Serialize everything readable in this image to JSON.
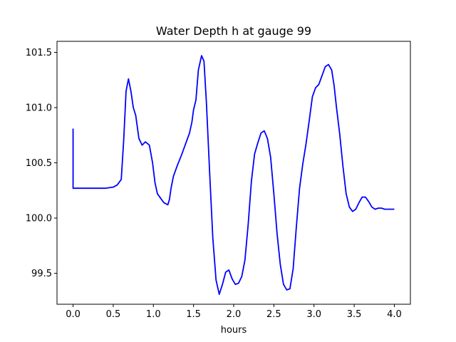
{
  "chart_data": {
    "type": "line",
    "title": "Water Depth h at gauge 99",
    "xlabel": "hours",
    "ylabel": "",
    "xlim": [
      -0.2,
      4.2
    ],
    "ylim": [
      99.22,
      101.6
    ],
    "xticks": [
      0.0,
      0.5,
      1.0,
      1.5,
      2.0,
      2.5,
      3.0,
      3.5,
      4.0
    ],
    "xtick_labels": [
      "0.0",
      "0.5",
      "1.0",
      "1.5",
      "2.0",
      "2.5",
      "3.0",
      "3.5",
      "4.0"
    ],
    "yticks": [
      99.5,
      100.0,
      100.5,
      101.0,
      101.5
    ],
    "ytick_labels": [
      "99.5",
      "100.0",
      "100.5",
      "101.0",
      "101.5"
    ],
    "grid": false,
    "series": [
      {
        "color": "#0000ff",
        "x": [
          0.0,
          0.0,
          0.0,
          0.1,
          0.2,
          0.3,
          0.4,
          0.5,
          0.55,
          0.6,
          0.63,
          0.66,
          0.69,
          0.72,
          0.75,
          0.78,
          0.82,
          0.86,
          0.9,
          0.95,
          0.99,
          1.02,
          1.05,
          1.09,
          1.13,
          1.18,
          1.2,
          1.22,
          1.25,
          1.3,
          1.35,
          1.4,
          1.45,
          1.48,
          1.5,
          1.53,
          1.56,
          1.6,
          1.63,
          1.66,
          1.7,
          1.74,
          1.78,
          1.82,
          1.86,
          1.9,
          1.94,
          1.98,
          2.02,
          2.06,
          2.1,
          2.14,
          2.18,
          2.22,
          2.26,
          2.3,
          2.34,
          2.38,
          2.42,
          2.46,
          2.5,
          2.54,
          2.58,
          2.62,
          2.66,
          2.7,
          2.74,
          2.78,
          2.82,
          2.86,
          2.9,
          2.94,
          2.98,
          3.02,
          3.06,
          3.1,
          3.14,
          3.18,
          3.22,
          3.25,
          3.28,
          3.32,
          3.36,
          3.4,
          3.44,
          3.48,
          3.52,
          3.56,
          3.6,
          3.64,
          3.68,
          3.72,
          3.76,
          3.8,
          3.84,
          3.88,
          3.92,
          3.96,
          4.0
        ],
        "y": [
          100.81,
          100.27,
          100.27,
          100.27,
          100.27,
          100.27,
          100.27,
          100.28,
          100.3,
          100.35,
          100.7,
          101.15,
          101.26,
          101.15,
          101.0,
          100.93,
          100.72,
          100.66,
          100.69,
          100.66,
          100.5,
          100.32,
          100.22,
          100.18,
          100.14,
          100.12,
          100.17,
          100.27,
          100.38,
          100.48,
          100.57,
          100.67,
          100.77,
          100.87,
          100.98,
          101.07,
          101.34,
          101.47,
          101.42,
          101.05,
          100.42,
          99.82,
          99.44,
          99.31,
          99.4,
          99.51,
          99.53,
          99.45,
          99.4,
          99.41,
          99.47,
          99.62,
          99.94,
          100.33,
          100.58,
          100.68,
          100.77,
          100.79,
          100.72,
          100.55,
          100.22,
          99.86,
          99.58,
          99.4,
          99.35,
          99.36,
          99.54,
          99.92,
          100.27,
          100.49,
          100.67,
          100.88,
          101.1,
          101.18,
          101.21,
          101.29,
          101.37,
          101.39,
          101.34,
          101.2,
          101.0,
          100.76,
          100.47,
          100.22,
          100.1,
          100.06,
          100.08,
          100.14,
          100.19,
          100.19,
          100.15,
          100.1,
          100.08,
          100.09,
          100.09,
          100.08,
          100.08,
          100.08,
          100.08
        ]
      }
    ]
  }
}
